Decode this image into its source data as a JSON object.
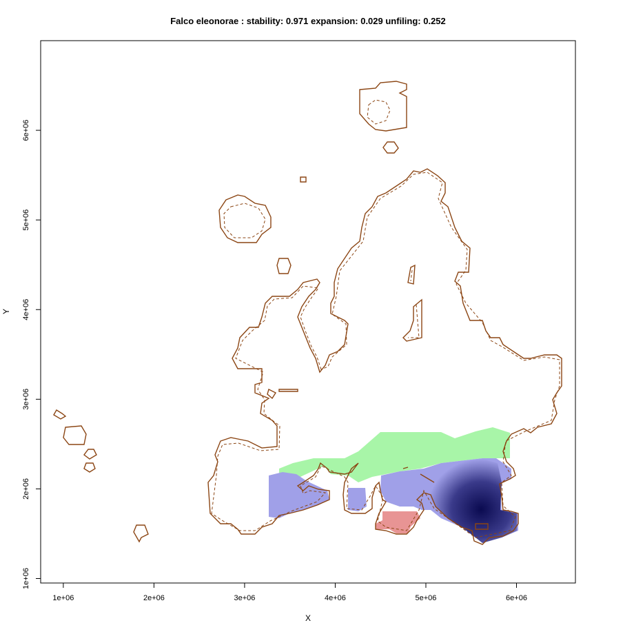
{
  "plot": {
    "title": "Falco eleonorae : stability: 0.971 expansion: 0.029 unfiling: 0.252",
    "xlabel": "X",
    "ylabel": "Y",
    "xticks": [
      {
        "value": 1000000,
        "label": "1e+06"
      },
      {
        "value": 2000000,
        "label": "2e+06"
      },
      {
        "value": 3000000,
        "label": "3e+06"
      },
      {
        "value": 4000000,
        "label": "4e+06"
      },
      {
        "value": 5000000,
        "label": "5e+06"
      },
      {
        "value": 6000000,
        "label": "6e+06"
      }
    ],
    "yticks": [
      {
        "value": 1000000,
        "label": "1e+06"
      },
      {
        "value": 2000000,
        "label": "2e+06"
      },
      {
        "value": 3000000,
        "label": "3e+06"
      },
      {
        "value": 4000000,
        "label": "4e+06"
      },
      {
        "value": 5000000,
        "label": "5e+06"
      },
      {
        "value": 6000000,
        "label": "6e+06"
      }
    ],
    "xlim": [
      750000,
      6650000
    ],
    "ylim": [
      950000,
      7000000
    ]
  },
  "colors": {
    "coastline": "#8B4513",
    "unfilling": "#a8f5a8",
    "stability": "#a0a0e8",
    "expansion": "#e89494",
    "stability_dark": "#0a0a50"
  }
}
